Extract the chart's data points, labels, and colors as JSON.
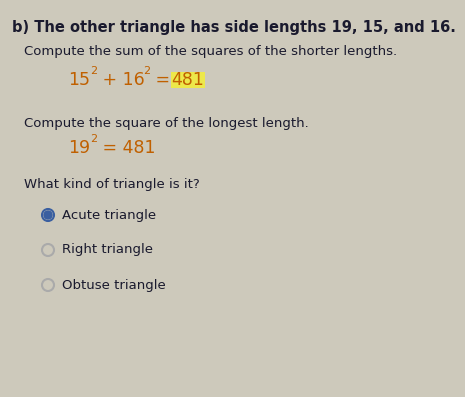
{
  "title": "b) The other triangle has side lengths 19, 15, and 16.",
  "section1_label": "Compute the sum of the squares of the shorter lengths.",
  "section2_label": "Compute the square of the longest length.",
  "question": "What kind of triangle is it?",
  "options": [
    "Acute triangle",
    "Right triangle",
    "Obtuse triangle"
  ],
  "selected": 0,
  "bg_color": "#cdc9bb",
  "text_color": "#1a1a2e",
  "eq_color": "#c06000",
  "highlight_color": "#ede84a",
  "radio_selected_fill": "#3a5fa0",
  "radio_selected_ring": "#3a5fa0",
  "radio_unselected_ring": "#aaaaaa",
  "title_fontsize": 10.5,
  "body_fontsize": 9.5,
  "eq_fontsize": 12.5,
  "sup_fontsize": 8.0,
  "option_fontsize": 9.5
}
